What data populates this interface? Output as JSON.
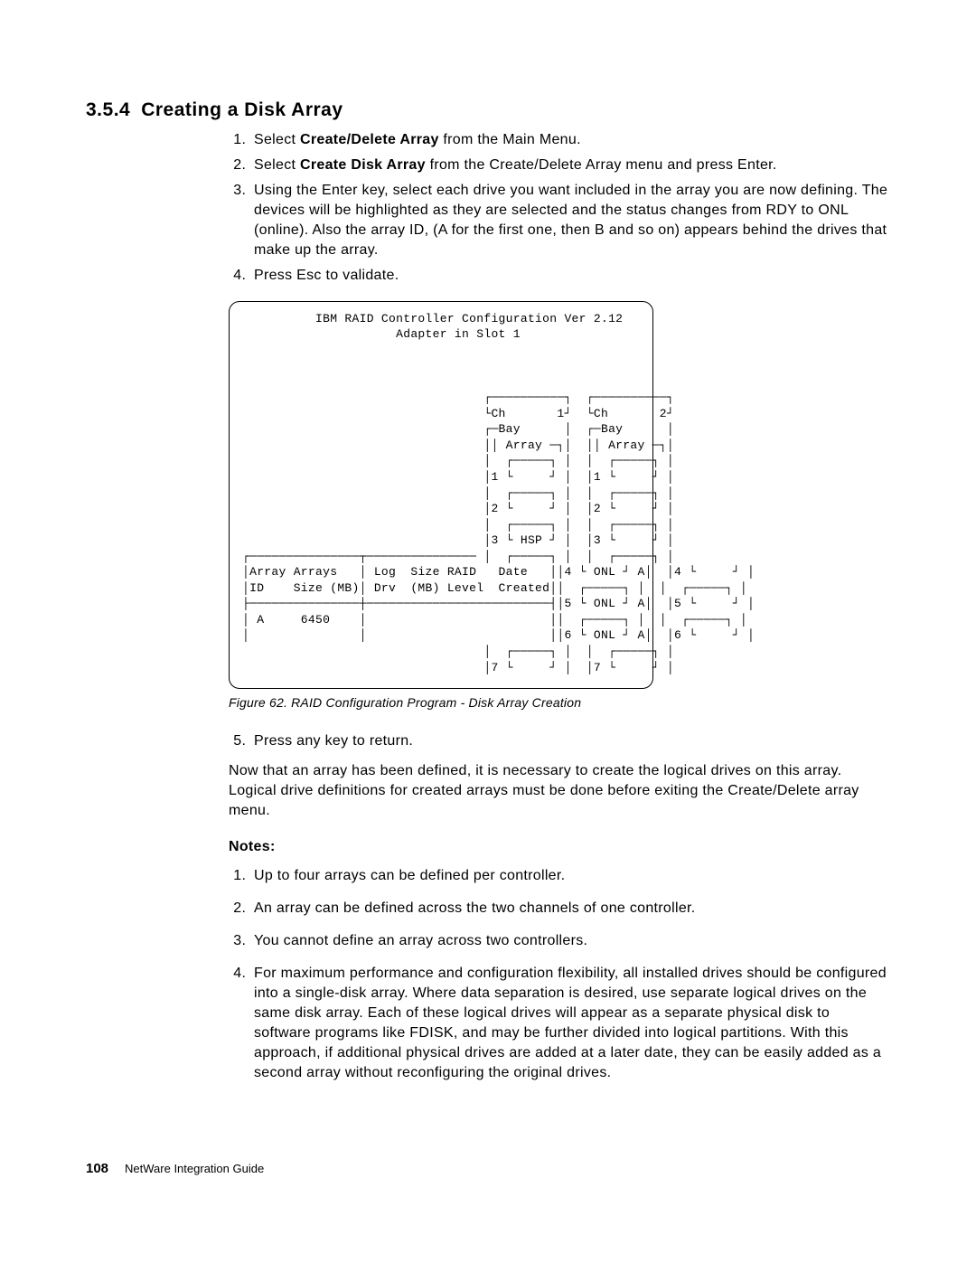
{
  "heading": {
    "number": "3.5.4",
    "title": "Creating a Disk Array"
  },
  "steps_top": [
    {
      "pre": "Select ",
      "bold": "Create/Delete Array",
      "post": " from the Main Menu."
    },
    {
      "pre": "Select ",
      "bold": "Create Disk Array",
      "post": " from the Create/Delete Array menu and press Enter."
    },
    {
      "pre": "",
      "bold": "",
      "post": "Using the Enter key, select each drive you want included in the array you are now defining. The devices will be highlighted as they are selected and the status changes from RDY to ONL (online).  Also the array ID, (A for the first one, then B and so on) appears behind the drives that make up the array."
    },
    {
      "pre": "",
      "bold": "",
      "post": "Press Esc to validate."
    }
  ],
  "figure": {
    "title_line": "          IBM RAID Controller Configuration Ver 2.12",
    "adapter_line": "                     Adapter in Slot 1",
    "ch1_hdr": "┌──────────┐",
    "ch1_lbl": "└Ch       1┘",
    "ch2_hdr": "┌──────────┐",
    "ch2_lbl": "└Ch       2┘",
    "bay": "┌─Bay      │",
    "array": "││ Array ─┐│",
    "box_top": "┌─────┐",
    "box_btm": "└     ┘",
    "hsp": "└ HSP ┘",
    "onl": "└ ONL ┘",
    "arr_hdr1": "│Array Arrays   │ Log  Size RAID   Date   │",
    "arr_hdr2": "│ID    Size (MB)│ Drv  (MB) Level  Created│",
    "arr_sep": "├───────────────┼─────────────────────────┤",
    "arr_row": "│ A     6450    │                         │",
    "arr_btm": "│               │                         │",
    "caption": "Figure  62.  RAID Configuration Program - Disk Array Creation"
  },
  "steps_mid": [
    "Press any key to return."
  ],
  "para_after": "Now that an array has been defined, it is necessary to create the logical drives on this array.  Logical drive definitions for created arrays must be done before exiting the Create/Delete array menu.",
  "notes_label": "Notes:",
  "notes": [
    "Up to four arrays can be defined per controller.",
    "An array can be defined across the two channels of one controller.",
    "You cannot define an array across two controllers.",
    "For maximum performance and configuration flexibility, all installed drives should be configured into a single-disk array. Where data separation is desired, use separate logical drives on the same disk array. Each of these logical drives will appear as a separate physical disk to software programs like FDISK, and may be further divided into logical partitions. With this approach, if additional physical drives are added at a later date, they can be easily added as a second array without reconfiguring the original drives."
  ],
  "footer": {
    "page": "108",
    "book": "NetWare Integration Guide"
  }
}
